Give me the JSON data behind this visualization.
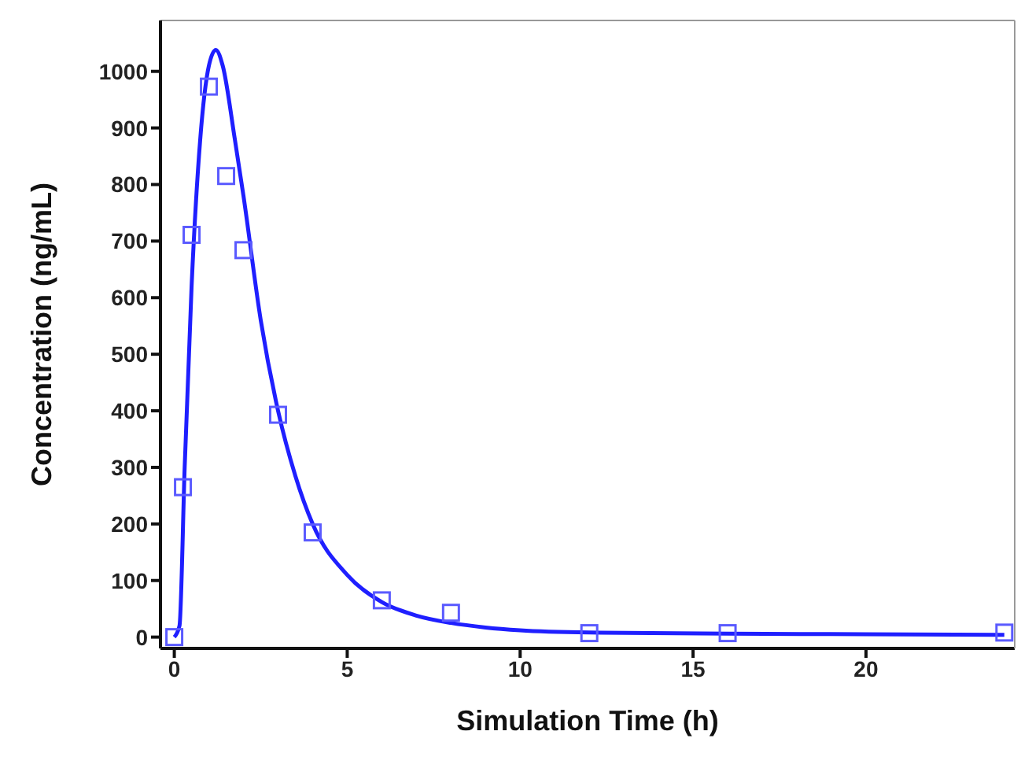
{
  "chart_data": {
    "type": "line",
    "xlabel": "Simulation Time (h)",
    "ylabel": "Concentration (ng/mL)",
    "xlim": [
      -0.4,
      24.3
    ],
    "xticks": [
      0,
      5,
      10,
      15,
      20
    ],
    "ylim": [
      -20,
      1090
    ],
    "yticks": [
      0,
      100,
      200,
      300,
      400,
      500,
      600,
      700,
      800,
      900,
      1000
    ],
    "grid": false,
    "series": [
      {
        "color": "#1f1fff",
        "marker": "none",
        "line_style": "solid",
        "x": [
          0,
          0.15,
          0.3,
          0.5,
          0.75,
          1,
          1.2,
          1.4,
          1.75,
          2,
          2.5,
          3,
          3.5,
          4,
          5,
          6,
          7,
          8,
          9,
          10,
          12,
          16,
          20,
          24
        ],
        "values": [
          0,
          20,
          300,
          620,
          880,
          1010,
          1038,
          1010,
          880,
          780,
          560,
          400,
          285,
          200,
          110,
          62,
          38,
          25,
          17,
          12,
          8,
          6,
          5,
          4
        ]
      },
      {
        "type": "scatter",
        "color": "#5a5aff",
        "marker": "square",
        "x": [
          0,
          0.25,
          0.5,
          1,
          1.5,
          2,
          3,
          4,
          6,
          8,
          12,
          16,
          24
        ],
        "values": [
          0,
          265,
          711,
          973,
          815,
          684,
          393,
          185,
          65,
          43,
          7,
          7,
          8
        ]
      }
    ]
  }
}
